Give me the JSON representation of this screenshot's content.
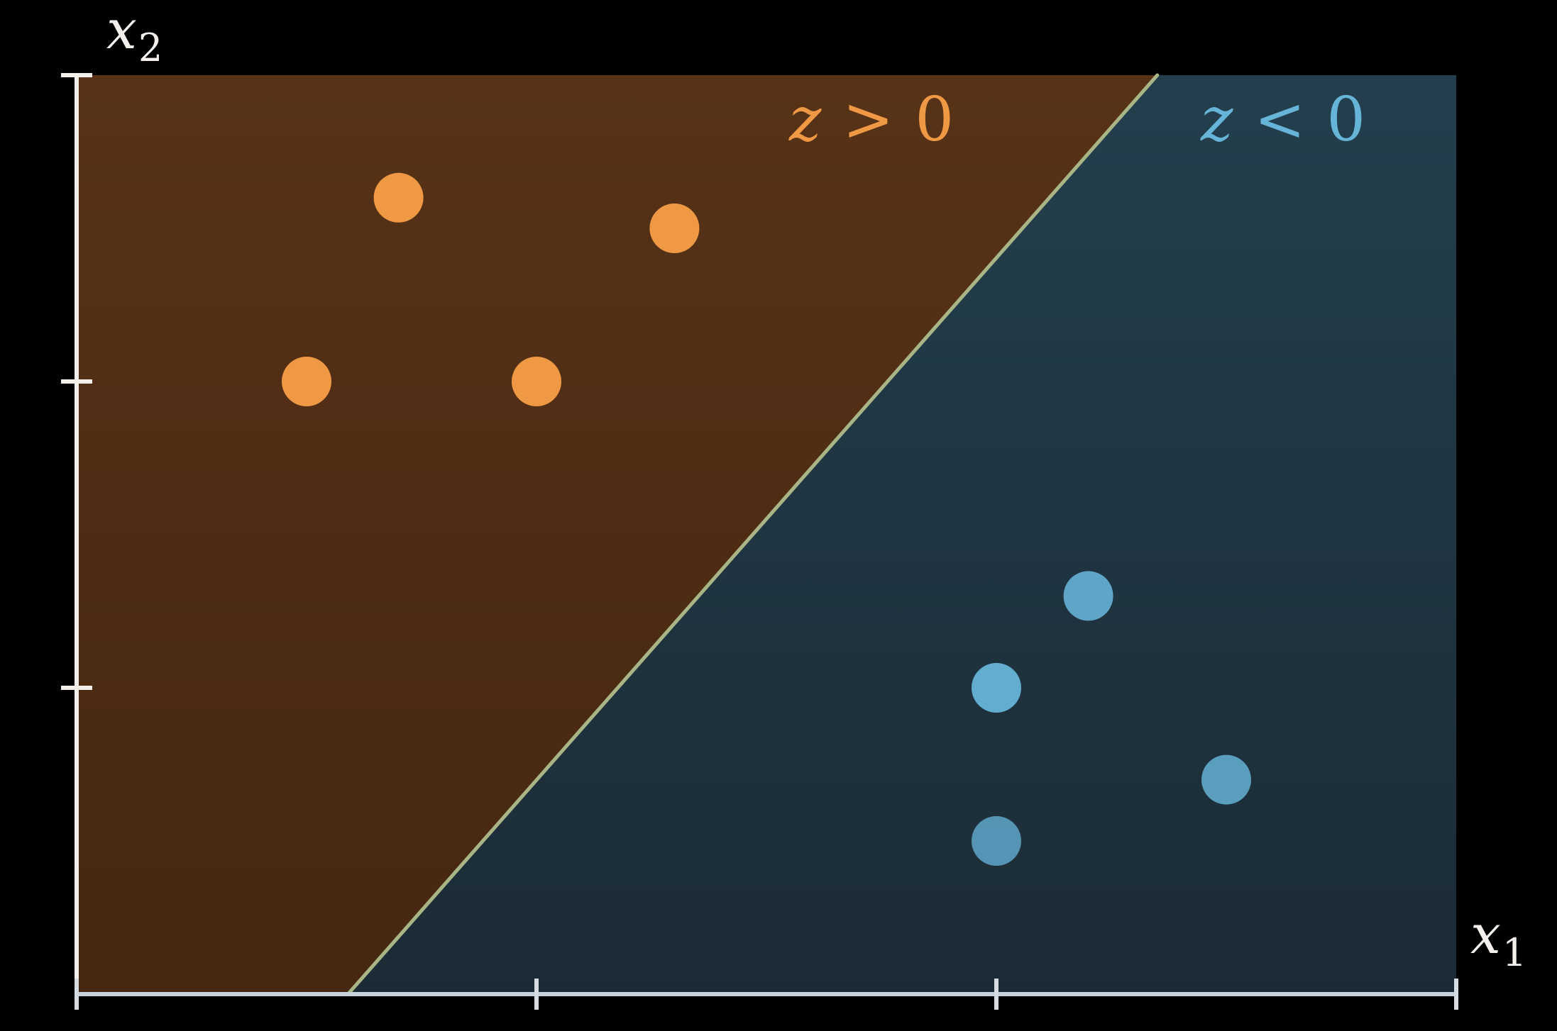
{
  "chart_data": {
    "type": "scatter",
    "xlabel_var": "x",
    "xlabel_sub": "1",
    "ylabel_var": "x",
    "ylabel_sub": "2",
    "xlim": [
      0,
      3
    ],
    "ylim": [
      0,
      3
    ],
    "x_ticks": [
      0,
      1,
      2,
      3
    ],
    "y_ticks": [
      1,
      2,
      3
    ],
    "grid": false,
    "boundary": {
      "points": [
        [
          0.59,
          0.0
        ],
        [
          2.35,
          3.0
        ]
      ]
    },
    "regions": [
      {
        "label_var": "z",
        "label_op": ">",
        "label_val": "0",
        "color": "#f09945",
        "fill": "#553016"
      },
      {
        "label_var": "z",
        "label_op": "<",
        "label_val": "0",
        "color": "#67b4d9",
        "fill": "#223d4a"
      }
    ],
    "series": [
      {
        "color": "#f09945",
        "points": [
          [
            0.5,
            2.0
          ],
          [
            0.7,
            2.6
          ],
          [
            1.0,
            2.0
          ],
          [
            1.3,
            2.5
          ]
        ]
      },
      {
        "color": "#67b4d9",
        "points": [
          [
            2.0,
            1.0
          ],
          [
            2.2,
            1.3
          ],
          [
            2.5,
            0.7
          ],
          [
            2.0,
            0.5
          ]
        ]
      }
    ],
    "axis_color": "#f2eee9",
    "boundary_color": "#a9b585"
  }
}
